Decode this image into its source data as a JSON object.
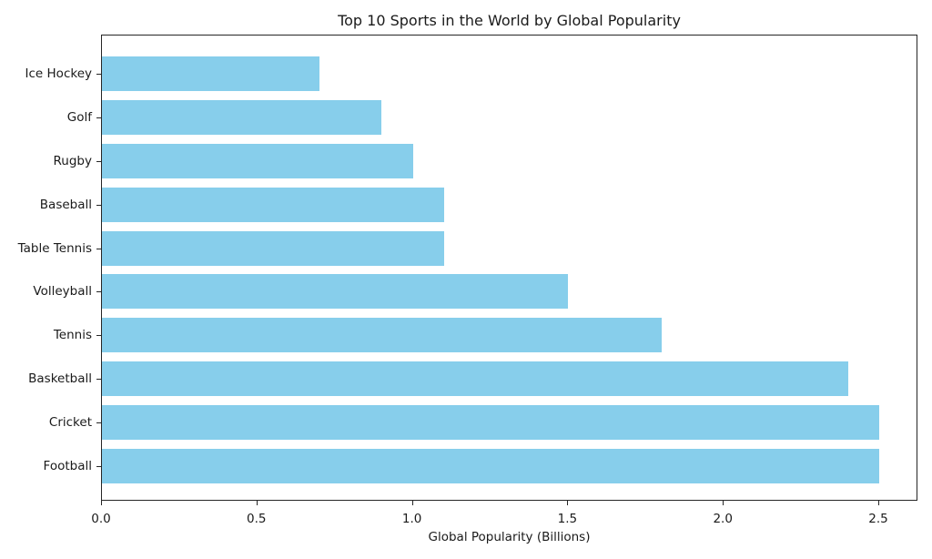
{
  "chart_data": {
    "type": "bar",
    "orientation": "horizontal",
    "title": "Top 10 Sports in the World by Global Popularity",
    "xlabel": "Global Popularity (Billions)",
    "ylabel": "",
    "categories": [
      "Football",
      "Cricket",
      "Basketball",
      "Tennis",
      "Volleyball",
      "Table Tennis",
      "Baseball",
      "Rugby",
      "Golf",
      "Ice Hockey"
    ],
    "values": [
      2.5,
      2.5,
      2.4,
      1.8,
      1.5,
      1.1,
      1.1,
      1.0,
      0.9,
      0.7
    ],
    "xlim": [
      0,
      2.625
    ],
    "xticks": [
      "0.0",
      "0.5",
      "1.0",
      "1.5",
      "2.0",
      "2.5"
    ],
    "bar_color": "#87ceeb",
    "grid": false,
    "legend": null
  }
}
